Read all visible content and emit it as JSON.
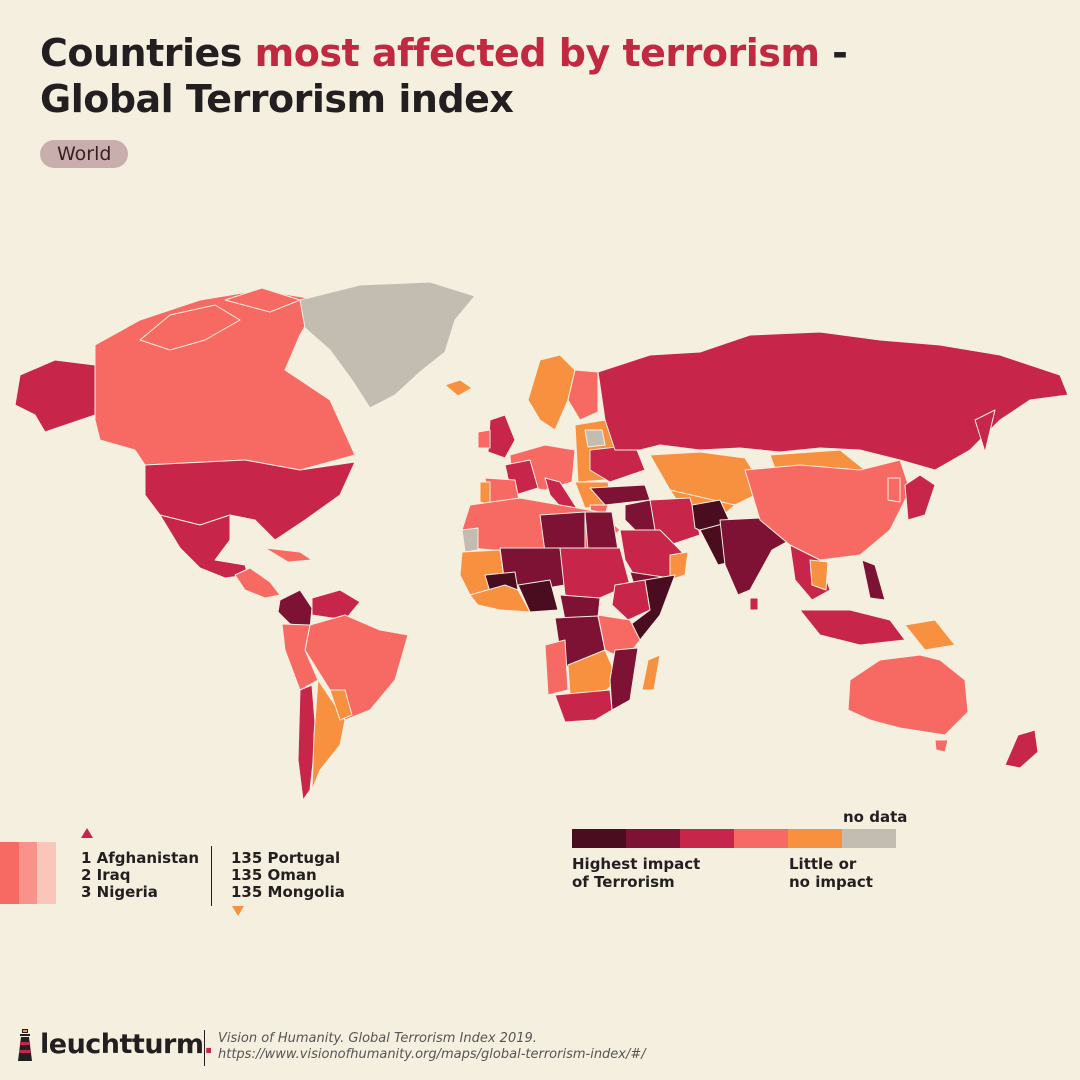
{
  "title": {
    "part1": "Countries ",
    "highlight": "most affected by terrorism",
    "part2": " -",
    "line2": "Global Terrorism index",
    "highlight_color": "#c0293f"
  },
  "region_chip": "World",
  "legend": {
    "no_data_label": "no data",
    "high_label_line1": "Highest impact",
    "high_label_line2": "of Terrorism",
    "low_label_line1": "Little or",
    "low_label_line2": "no impact",
    "scale_colors": [
      "#4a0d1f",
      "#7d1234",
      "#c7254a",
      "#f66a63",
      "#f7913f",
      "#c2bdb0"
    ]
  },
  "ranking": {
    "top": [
      "1 Afghanistan",
      "2 Iraq",
      "3 Nigeria"
    ],
    "bottom": [
      "135 Portugal",
      "135 Oman",
      "135 Mongolia"
    ],
    "up_icon": "triangle-up-icon",
    "down_icon": "triangle-down-icon"
  },
  "brand": {
    "name": "leuchtturm",
    "dot": ".",
    "icon": "lighthouse-icon"
  },
  "source": {
    "line1": "Vision of Humanity. Global Terrorism Index 2019.",
    "line2": "https://www.visionofhumanity.org/maps/global-terrorism-index/#/"
  }
}
